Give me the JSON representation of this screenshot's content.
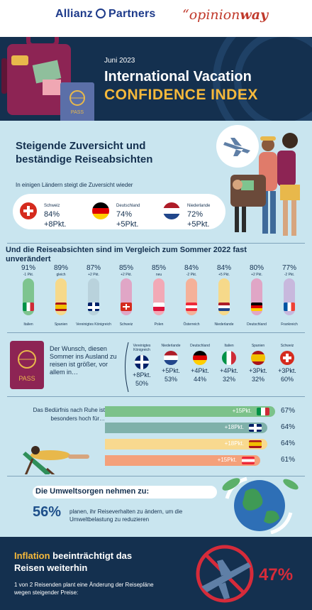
{
  "header": {
    "logo_left": "Allianz",
    "logo_left_b": "Partners",
    "logo_right_a": "“",
    "logo_right_b": "opinion",
    "logo_right_c": "way"
  },
  "hero": {
    "date": "Juni 2023",
    "title": "International Vacation",
    "subtitle": "CONFIDENCE INDEX",
    "passport": "PASS"
  },
  "confidence": {
    "headline": "Steigende Zuversicht und beständige Reiseabsichten",
    "sub": "In einigen Ländern steigt die Zuversicht wieder",
    "countries": [
      {
        "name": "Schweiz",
        "value": "84%",
        "delta": "+8Pkt."
      },
      {
        "name": "Deutschland",
        "value": "74%",
        "delta": "+5Pkt."
      },
      {
        "name": "Niederlande",
        "value": "72%",
        "delta": "+5Pkt."
      }
    ]
  },
  "intentions": {
    "headline": "Und die Reiseabsichten sind im Vergleich zum Sommer 2022 fast unverändert",
    "items": [
      {
        "pct": "91%",
        "chg": "-1 Pkt.",
        "name": "Italien",
        "color": "#7ec48f"
      },
      {
        "pct": "89%",
        "chg": "gleich",
        "name": "Spanien",
        "color": "#f6d98a"
      },
      {
        "pct": "87%",
        "chg": "+2 Pkt.",
        "name": "Vereinigtes Königreich",
        "color": "#b9d2dc"
      },
      {
        "pct": "85%",
        "chg": "+2 Pkt.",
        "name": "Schweiz",
        "color": "#e0a6c6"
      },
      {
        "pct": "85%",
        "chg": "neu",
        "name": "Polen",
        "color": "#f2a9b6"
      },
      {
        "pct": "84%",
        "chg": "-2 Pkt.",
        "name": "Österreich",
        "color": "#f4b199"
      },
      {
        "pct": "84%",
        "chg": "+5 Pkt.",
        "name": "Niederlande",
        "color": "#f6d98a"
      },
      {
        "pct": "80%",
        "chg": "+2 Pkt.",
        "name": "Deutschland",
        "color": "#e0a6c6"
      },
      {
        "pct": "77%",
        "chg": "-2 Pkt.",
        "name": "Frankreich",
        "color": "#c8b8dd"
      }
    ]
  },
  "abroad": {
    "text": "Der Wunsch, diesen Sommer ins Ausland zu reisen ist größer, vor allem in…",
    "items": [
      {
        "name": "Vereinigtes Königreich",
        "delta": "+8Pkt.",
        "pct": "50%"
      },
      {
        "name": "Niederlande",
        "delta": "+5Pkt.",
        "pct": "53%"
      },
      {
        "name": "Deutschland",
        "delta": "+4Pkt.",
        "pct": "44%"
      },
      {
        "name": "Italien",
        "delta": "+4Pkt.",
        "pct": "32%"
      },
      {
        "name": "Spanien",
        "delta": "+3Pkt.",
        "pct": "32%"
      },
      {
        "name": "Schweiz",
        "delta": "+3Pkt.",
        "pct": "60%"
      }
    ]
  },
  "rest": {
    "text": "Das Bedürfnis nach Ruhe ist besonders hoch für…",
    "bars": [
      {
        "delta": "+15Pkt.",
        "pct": "67%",
        "value": 67,
        "color": "#7cc28a"
      },
      {
        "delta": "+18Pkt.",
        "pct": "64%",
        "value": 64,
        "color": "#7fb1aa"
      },
      {
        "delta": "+18Pkt.",
        "pct": "64%",
        "value": 64,
        "color": "#f8d98f"
      },
      {
        "delta": "+15Pkt.",
        "pct": "61%",
        "value": 61,
        "color": "#f4a07a"
      }
    ]
  },
  "environment": {
    "headline": "Die Umweltsorgen nehmen zu:",
    "big": "56%",
    "text": "planen, ihr Reiseverhalten zu ändern, um die Umweltbelastung zu reduzieren"
  },
  "inflation": {
    "word": "Inflation",
    "headline_rest": " beeinträchtigt das Reisen weiterhin",
    "text": "1 von 2 Reisenden plant eine Änderung der Reisepläne wegen steigender Preise:",
    "pct": "47%"
  }
}
